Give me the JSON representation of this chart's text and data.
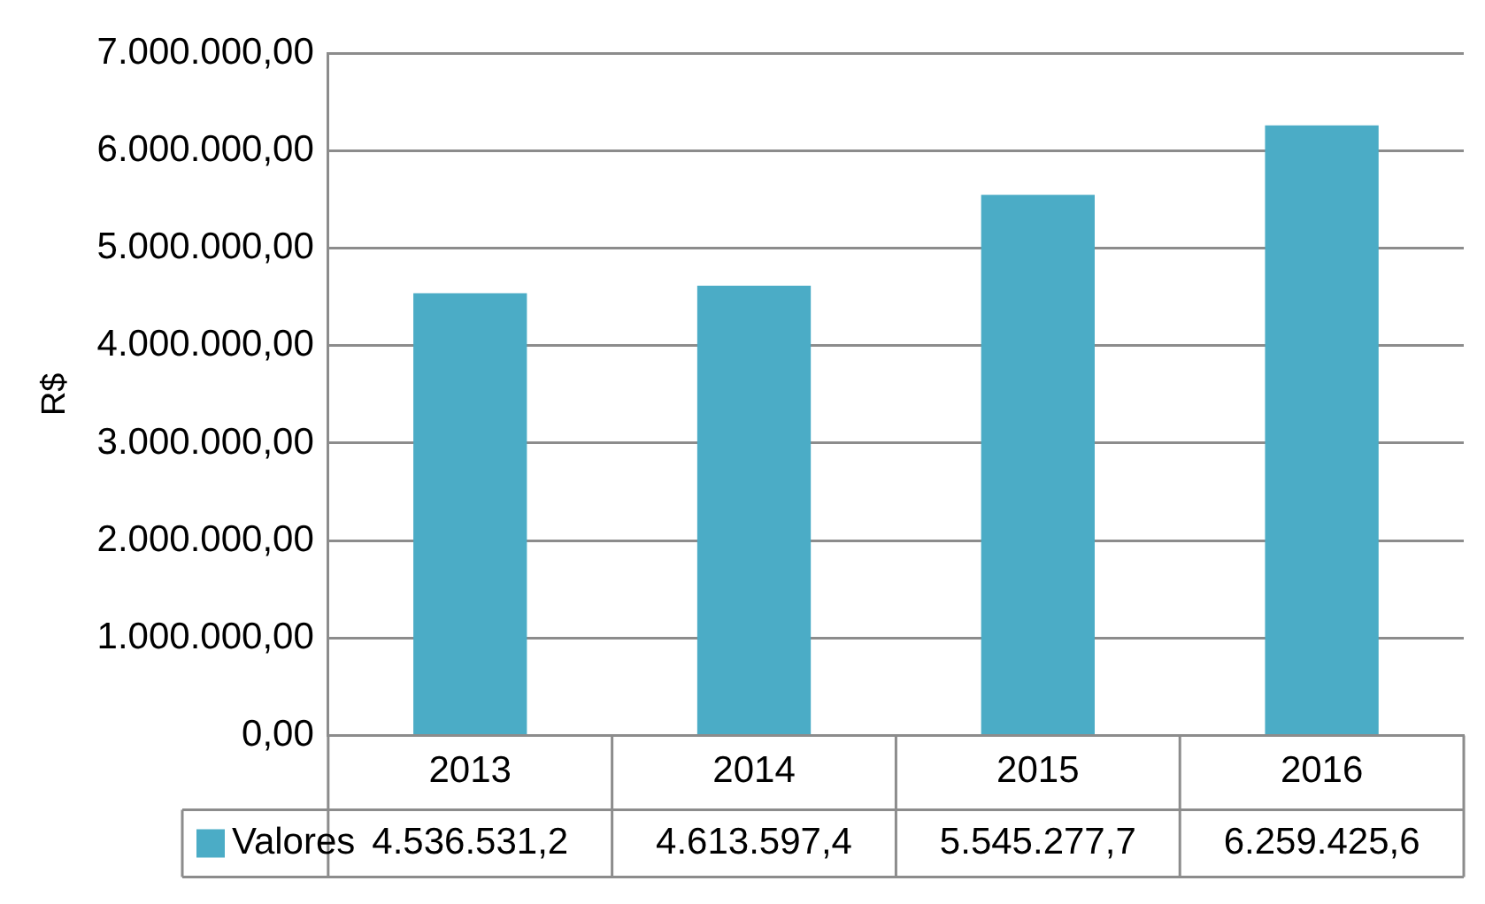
{
  "chart_data": {
    "type": "bar",
    "ylabel": "R$",
    "categories": [
      "2013",
      "2014",
      "2015",
      "2016"
    ],
    "series": [
      {
        "name": "Valores",
        "color": "#4bacc6",
        "values": [
          4536531.2,
          4613597.4,
          5545277.7,
          6259425.6
        ],
        "value_labels": [
          "4.536.531,2",
          "4.613.597,4",
          "5.545.277,7",
          "6.259.425,6"
        ]
      }
    ],
    "ylim": [
      0,
      7000000
    ],
    "yticks": [
      {
        "value": 0,
        "label": "0,00"
      },
      {
        "value": 1000000,
        "label": "1.000.000,00"
      },
      {
        "value": 2000000,
        "label": "2.000.000,00"
      },
      {
        "value": 3000000,
        "label": "3.000.000,00"
      },
      {
        "value": 4000000,
        "label": "4.000.000,00"
      },
      {
        "value": 5000000,
        "label": "5.000.000,00"
      },
      {
        "value": 6000000,
        "label": "6.000.000,00"
      },
      {
        "value": 7000000,
        "label": "7.000.000,00"
      }
    ],
    "grid": "y",
    "legend": "bottom"
  }
}
